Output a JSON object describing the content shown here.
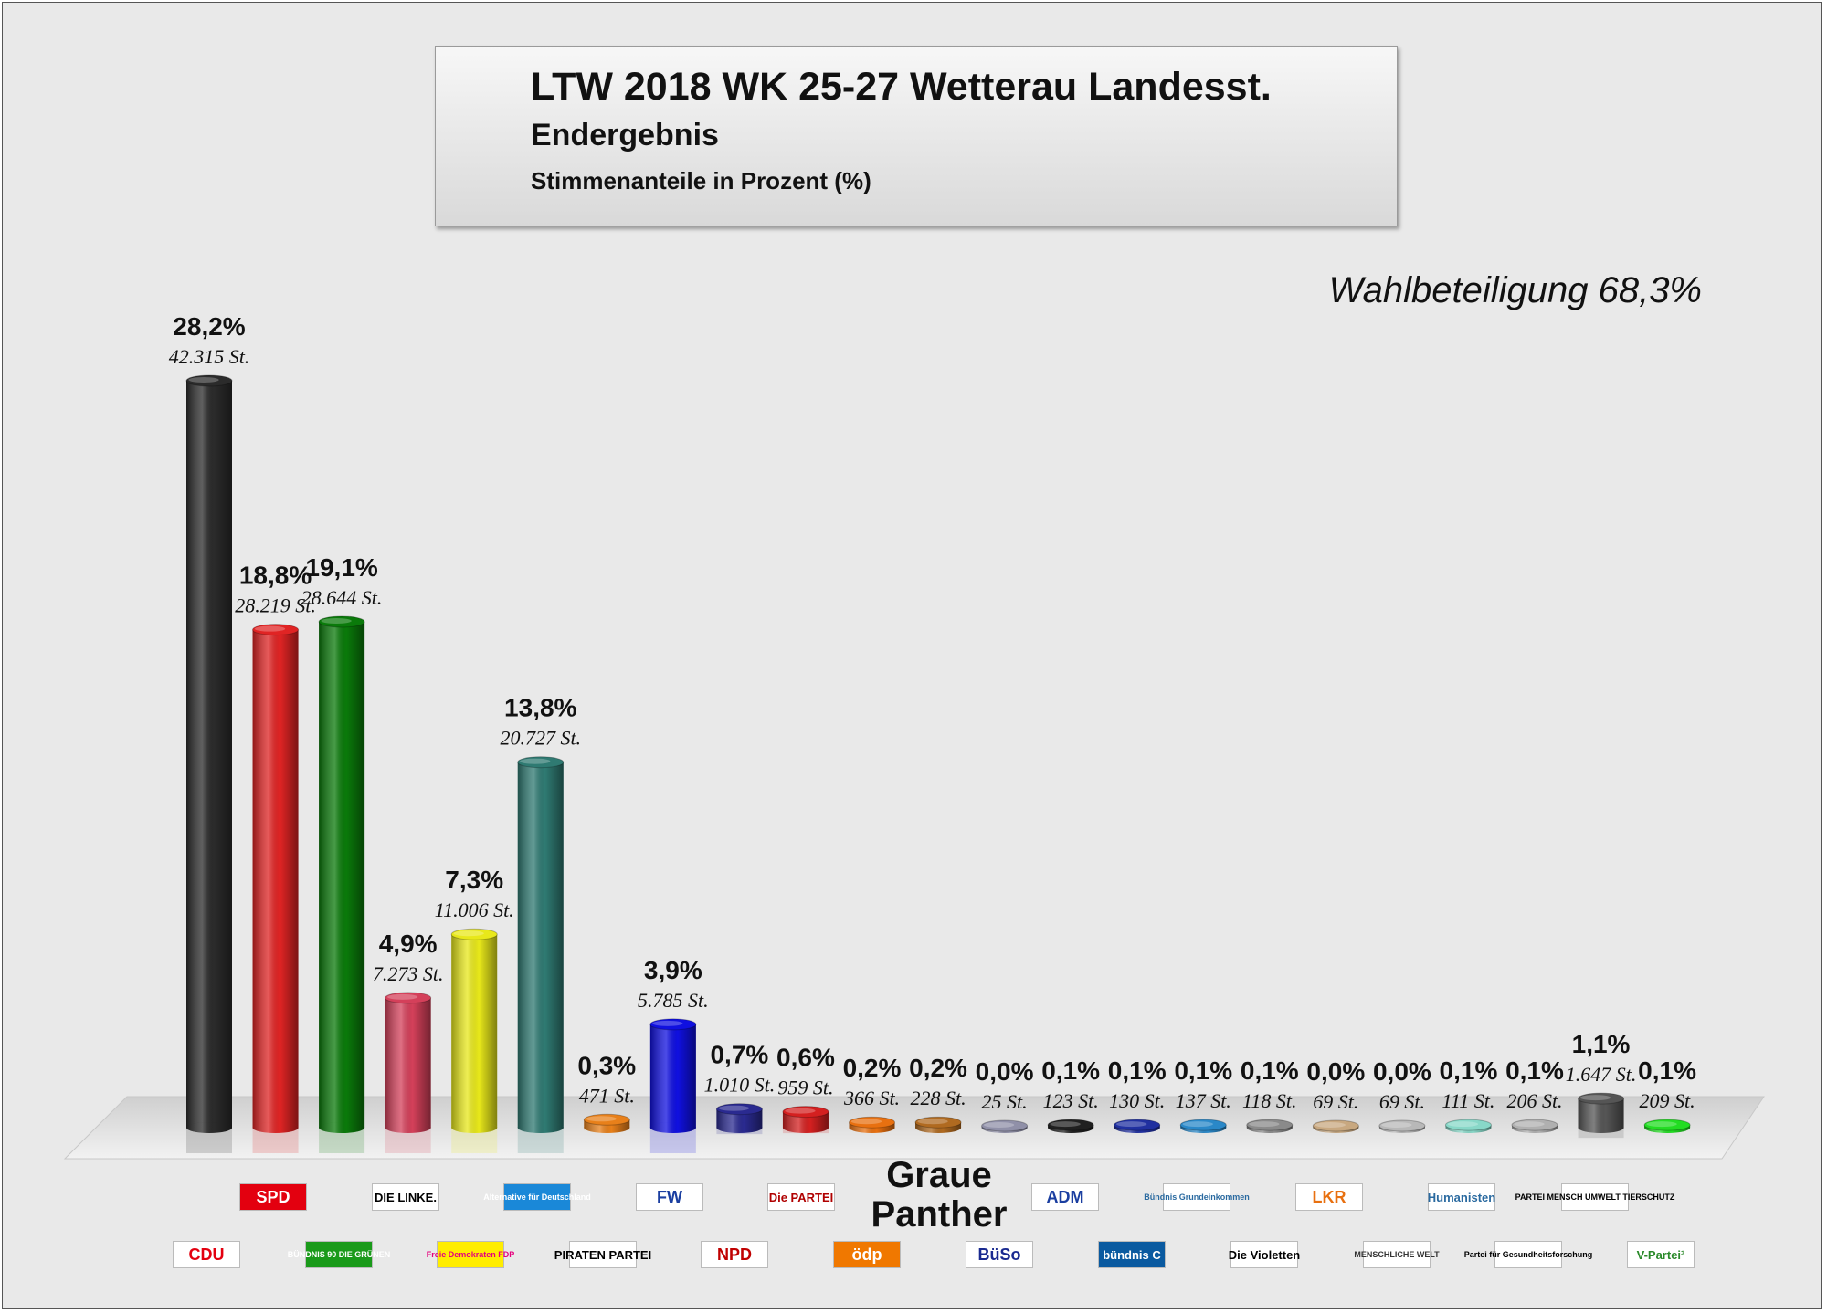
{
  "title": "LTW 2018 WK 25-27 Wetterau Landesst.",
  "subtitle": "Endergebnis",
  "subtitle2": "Stimmenanteile in Prozent (%)",
  "turnout": "Wahlbeteiligung 68,3%",
  "graue_panther": "Graue Panther",
  "chart_data": {
    "type": "bar",
    "ylim": [
      0,
      30
    ],
    "categories": [
      "CDU",
      "SPD",
      "GRÜNE",
      "DIE LINKE",
      "FDP",
      "AfD",
      "PIRATEN",
      "FW",
      "NPD",
      "Die PARTEI",
      "ödp",
      "Graue Panther",
      "BüSo",
      "ADM",
      "Bündnis C",
      "Bündnis Grundeinkommen",
      "Die Violetten",
      "LKR",
      "Menschliche Welt",
      "Die Humanisten",
      "Partei für Gesundheitsforschung",
      "Tierschutzpartei",
      "V-Partei³"
    ],
    "values": [
      28.2,
      18.8,
      19.1,
      4.9,
      7.3,
      13.8,
      0.3,
      3.9,
      0.7,
      0.6,
      0.2,
      0.2,
      0.0,
      0.1,
      0.1,
      0.1,
      0.1,
      0.0,
      0.0,
      0.1,
      0.1,
      1.1,
      0.1
    ],
    "percent_labels": [
      "28,2%",
      "18,8%",
      "19,1%",
      "4,9%",
      "7,3%",
      "13,8%",
      "0,3%",
      "3,9%",
      "0,7%",
      "0,6%",
      "0,2%",
      "0,2%",
      "0,0%",
      "0,1%",
      "0,1%",
      "0,1%",
      "0,1%",
      "0,0%",
      "0,0%",
      "0,1%",
      "0,1%",
      "1,1%",
      "0,1%"
    ],
    "vote_labels": [
      "42.315 St.",
      "28.219 St.",
      "28.644 St.",
      "7.273 St.",
      "11.006 St.",
      "20.727 St.",
      "471 St.",
      "5.785 St.",
      "1.010 St.",
      "959 St.",
      "366 St.",
      "228 St.",
      "25 St.",
      "123 St.",
      "130 St.",
      "137 St.",
      "118 St.",
      "69 St.",
      "69 St.",
      "111 St.",
      "206 St.",
      "1.647 St.",
      "209 St."
    ],
    "colors": [
      "#2b2b2b",
      "#e02424",
      "#0a7a0a",
      "#d4405a",
      "#e8e81a",
      "#2f7a72",
      "#e8801a",
      "#1010e0",
      "#2a2a90",
      "#d42020",
      "#e87010",
      "#b06a20",
      "#9090a8",
      "#202020",
      "#2030a0",
      "#2a88c8",
      "#8a8a8a",
      "#c8a880",
      "#b8b8b8",
      "#88d8c8",
      "#b0b0b0",
      "#555555",
      "#22dd22"
    ]
  },
  "logos_top": [
    {
      "name": "SPD",
      "bg": "#e3000f",
      "fg": "#ffffff"
    },
    {
      "name": "DIE LINKE.",
      "bg": "#ffffff",
      "fg": "#000000"
    },
    {
      "name": "Alternative für Deutschland",
      "bg": "#1a88d8",
      "fg": "#ffffff"
    },
    {
      "name": "FW",
      "bg": "#ffffff",
      "fg": "#1a3ea0"
    },
    {
      "name": "Die PARTEI",
      "bg": "#ffffff",
      "fg": "#b00000"
    },
    {
      "name": "ADM",
      "bg": "#ffffff",
      "fg": "#1a3ea0"
    },
    {
      "name": "Bündnis Grundeinkommen",
      "bg": "#ffffff",
      "fg": "#2a6aa0"
    },
    {
      "name": "LKR",
      "bg": "#ffffff",
      "fg": "#e87010"
    },
    {
      "name": "Humanisten",
      "bg": "#ffffff",
      "fg": "#2a6aa0"
    },
    {
      "name": "PARTEI MENSCH UMWELT TIERSCHUTZ",
      "bg": "#ffffff",
      "fg": "#000000"
    }
  ],
  "logos_bottom": [
    {
      "name": "CDU",
      "bg": "#ffffff",
      "fg": "#e3000f"
    },
    {
      "name": "BÜNDNIS 90 DIE GRÜNEN",
      "bg": "#1a9a1a",
      "fg": "#ffffff"
    },
    {
      "name": "Freie Demokraten FDP",
      "bg": "#ffed00",
      "fg": "#e5007d"
    },
    {
      "name": "PIRATEN PARTEI",
      "bg": "#ffffff",
      "fg": "#000000"
    },
    {
      "name": "NPD",
      "bg": "#ffffff",
      "fg": "#c00000"
    },
    {
      "name": "ödp",
      "bg": "#f07800",
      "fg": "#ffffff"
    },
    {
      "name": "BüSo",
      "bg": "#ffffff",
      "fg": "#1a2a90"
    },
    {
      "name": "bündnis C",
      "bg": "#0a5aa0",
      "fg": "#ffffff"
    },
    {
      "name": "Die Violetten",
      "bg": "#ffffff",
      "fg": "#000000"
    },
    {
      "name": "MENSCHLICHE WELT",
      "bg": "#ffffff",
      "fg": "#333333"
    },
    {
      "name": "Partei für Gesundheitsforschung",
      "bg": "#ffffff",
      "fg": "#000000"
    },
    {
      "name": "V-Partei³",
      "bg": "#ffffff",
      "fg": "#2a8a2a"
    }
  ]
}
